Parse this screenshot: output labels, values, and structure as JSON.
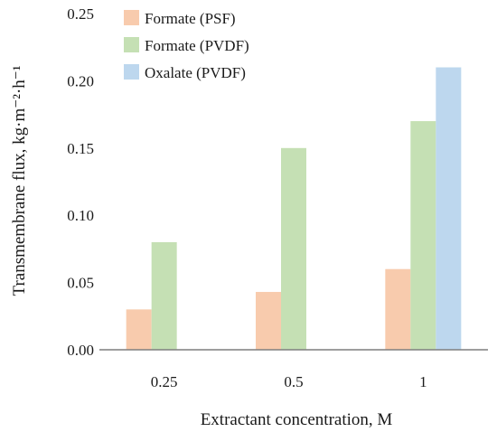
{
  "chart_data": {
    "type": "bar",
    "categories": [
      "0.25",
      "0.5",
      "1"
    ],
    "series": [
      {
        "name": "Formate (PSF)",
        "values": [
          0.03,
          0.043,
          0.06
        ],
        "color": "#f8cbad"
      },
      {
        "name": "Formate (PVDF)",
        "values": [
          0.08,
          0.15,
          0.17
        ],
        "color": "#c5e0b4"
      },
      {
        "name": "Oxalate (PVDF)",
        "values": [
          null,
          null,
          0.21
        ],
        "color": "#bdd7ee"
      }
    ],
    "xlabel": "Extractant concentration, M",
    "ylabel": "Transmembrane flux, kg·m⁻²·h⁻¹",
    "ylim": [
      0,
      0.25
    ],
    "yticks": [
      "0.00",
      "0.05",
      "0.10",
      "0.15",
      "0.20",
      "0.25"
    ],
    "legend_position": "top-left",
    "grid": false
  }
}
